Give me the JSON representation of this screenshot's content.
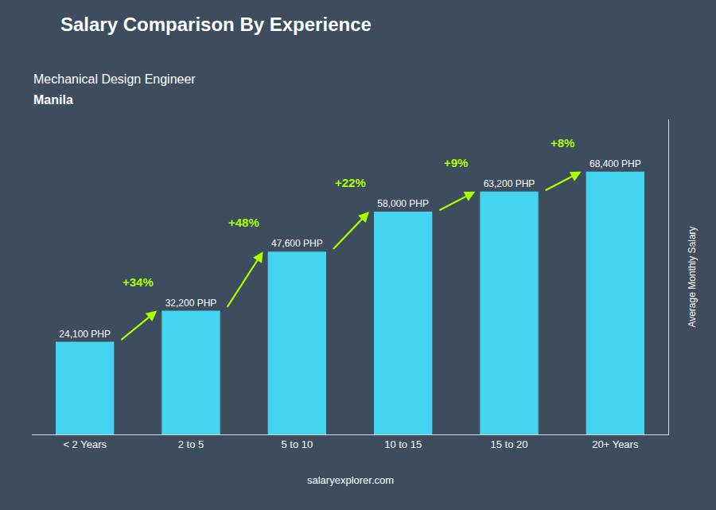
{
  "chart_data": {
    "type": "bar",
    "title": "Salary Comparison By Experience",
    "subtitle": [
      "Mechanical Design Engineer",
      "Manila"
    ],
    "ylabel": "Average Monthly Salary",
    "categories": [
      "< 2 Years",
      "2 to 5",
      "5 to 10",
      "10 to 15",
      "15 to 20",
      "20+ Years"
    ],
    "values": [
      24100,
      32200,
      47600,
      58000,
      63200,
      68400
    ],
    "value_labels": [
      "24,100 PHP",
      "32,200 PHP",
      "47,600 PHP",
      "58,000 PHP",
      "63,200 PHP",
      "68,400 PHP"
    ],
    "data_labels": true,
    "color": "#45d4f0",
    "ylim": [
      0,
      82000
    ],
    "tick_labels": "x",
    "grid": false,
    "annotations": [
      {
        "text": "+34%",
        "from": "< 2 Years",
        "to": "2 to 5",
        "color": "#aaff00"
      },
      {
        "text": "+48%",
        "from": "2 to 5",
        "to": "5 to 10",
        "color": "#aaff00"
      },
      {
        "text": "+22%",
        "from": "5 to 10",
        "to": "10 to 15",
        "color": "#aaff00"
      },
      {
        "text": "+9%",
        "from": "10 to 15",
        "to": "15 to 20",
        "color": "#aaff00"
      },
      {
        "text": "+8%",
        "from": "15 to 20",
        "to": "20+ Years",
        "color": "#aaff00"
      },
      {
        "text": "salaryexplorer.com"
      }
    ]
  }
}
